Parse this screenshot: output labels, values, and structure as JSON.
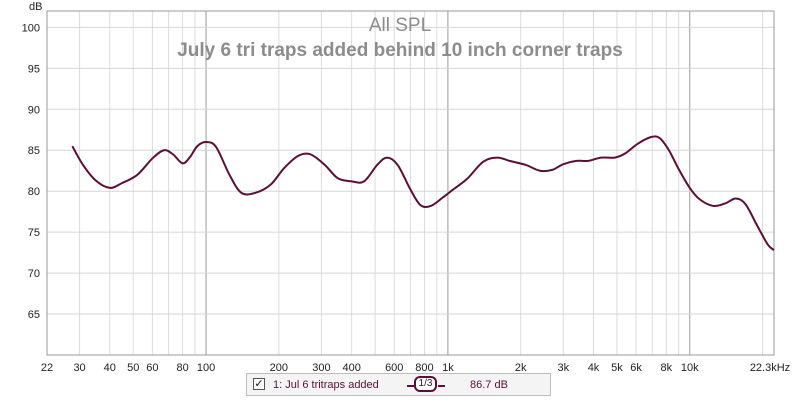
{
  "chart_data": {
    "type": "line",
    "title": "All SPL",
    "subtitle": "July 6 tri traps added behind 10 inch corner traps",
    "ylabel": "dB",
    "x_scale": "log",
    "xlim": [
      22,
      22300
    ],
    "ylim": [
      60,
      102
    ],
    "y_ticks": [
      65,
      70,
      75,
      80,
      85,
      90,
      95,
      100
    ],
    "x_ticks": [
      {
        "v": 22,
        "label": "22"
      },
      {
        "v": 30,
        "label": "30"
      },
      {
        "v": 40,
        "label": "40"
      },
      {
        "v": 50,
        "label": "50"
      },
      {
        "v": 60,
        "label": "60"
      },
      {
        "v": 80,
        "label": "80"
      },
      {
        "v": 100,
        "label": "100"
      },
      {
        "v": 200,
        "label": "200"
      },
      {
        "v": 300,
        "label": "300"
      },
      {
        "v": 400,
        "label": "400"
      },
      {
        "v": 600,
        "label": "600"
      },
      {
        "v": 800,
        "label": "800"
      },
      {
        "v": 1000,
        "label": "1k"
      },
      {
        "v": 2000,
        "label": "2k"
      },
      {
        "v": 3000,
        "label": "3k"
      },
      {
        "v": 4000,
        "label": "4k"
      },
      {
        "v": 5000,
        "label": "5k"
      },
      {
        "v": 6000,
        "label": "6k"
      },
      {
        "v": 8000,
        "label": "8k"
      },
      {
        "v": 10000,
        "label": "10k"
      },
      {
        "v": 22300,
        "label": "22.3kHz"
      }
    ],
    "grid": true,
    "series": [
      {
        "name": "1: Jul 6 tritraps added",
        "color": "#5a1036",
        "points": [
          [
            28,
            85.5
          ],
          [
            31,
            83.2
          ],
          [
            35,
            81.3
          ],
          [
            40,
            80.4
          ],
          [
            45,
            81.0
          ],
          [
            52,
            82.0
          ],
          [
            60,
            84.0
          ],
          [
            67,
            85.0
          ],
          [
            73,
            84.5
          ],
          [
            80,
            83.4
          ],
          [
            86,
            84.2
          ],
          [
            92,
            85.5
          ],
          [
            100,
            86.0
          ],
          [
            110,
            85.4
          ],
          [
            125,
            82.0
          ],
          [
            140,
            79.8
          ],
          [
            160,
            79.8
          ],
          [
            185,
            80.8
          ],
          [
            210,
            82.8
          ],
          [
            240,
            84.3
          ],
          [
            270,
            84.5
          ],
          [
            310,
            83.2
          ],
          [
            350,
            81.6
          ],
          [
            400,
            81.2
          ],
          [
            450,
            81.2
          ],
          [
            510,
            83.2
          ],
          [
            560,
            84.1
          ],
          [
            620,
            83.2
          ],
          [
            700,
            80.2
          ],
          [
            770,
            78.3
          ],
          [
            850,
            78.2
          ],
          [
            950,
            79.2
          ],
          [
            1050,
            80.2
          ],
          [
            1200,
            81.5
          ],
          [
            1400,
            83.6
          ],
          [
            1600,
            84.1
          ],
          [
            1800,
            83.7
          ],
          [
            2100,
            83.2
          ],
          [
            2400,
            82.5
          ],
          [
            2700,
            82.6
          ],
          [
            3000,
            83.3
          ],
          [
            3400,
            83.7
          ],
          [
            3800,
            83.7
          ],
          [
            4300,
            84.1
          ],
          [
            4900,
            84.1
          ],
          [
            5400,
            84.6
          ],
          [
            6100,
            85.8
          ],
          [
            6900,
            86.6
          ],
          [
            7500,
            86.5
          ],
          [
            8200,
            85.0
          ],
          [
            9000,
            82.7
          ],
          [
            10000,
            80.4
          ],
          [
            11000,
            79.0
          ],
          [
            12500,
            78.2
          ],
          [
            14000,
            78.5
          ],
          [
            15500,
            79.1
          ],
          [
            17000,
            78.4
          ],
          [
            19000,
            75.8
          ],
          [
            21000,
            73.5
          ],
          [
            22300,
            72.8
          ]
        ]
      }
    ]
  },
  "legend": {
    "checkbox_mark": "✓",
    "series_name": "1: Jul 6 tritraps added",
    "smoothing": "1/3",
    "value": "86.7 dB"
  }
}
